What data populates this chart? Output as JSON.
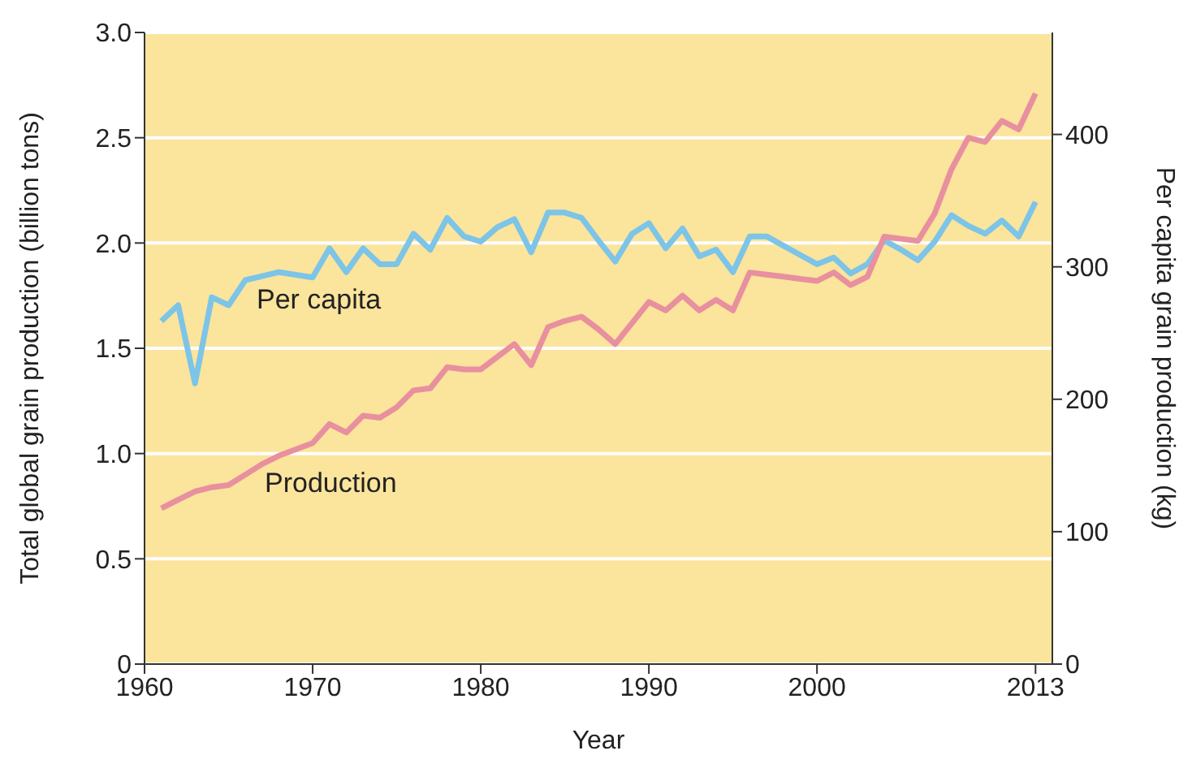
{
  "chart_data": {
    "type": "line",
    "xlabel": "Year",
    "ylabel": "Total global grain production (billion tons)",
    "y2label": "Per capita grain production (kg)",
    "x": [
      1961,
      1962,
      1963,
      1964,
      1965,
      1966,
      1967,
      1968,
      1969,
      1970,
      1971,
      1972,
      1973,
      1974,
      1975,
      1976,
      1977,
      1978,
      1979,
      1980,
      1981,
      1982,
      1983,
      1984,
      1985,
      1986,
      1987,
      1988,
      1989,
      1990,
      1991,
      1992,
      1993,
      1994,
      1995,
      1996,
      1997,
      1998,
      1999,
      2000,
      2001,
      2002,
      2003,
      2004,
      2005,
      2006,
      2007,
      2008,
      2009,
      2010,
      2011,
      2012,
      2013
    ],
    "series": [
      {
        "name": "Per capita",
        "color": "#7cc4e8",
        "axis": "y2",
        "values": [
          259,
          271,
          212,
          277,
          271,
          290,
          293,
          296,
          294,
          292,
          314,
          296,
          314,
          302,
          302,
          325,
          313,
          337,
          323,
          319,
          330,
          336,
          311,
          341,
          341,
          337,
          320,
          304,
          325,
          333,
          314,
          329,
          308,
          313,
          296,
          323,
          323,
          316,
          309,
          302,
          307,
          295,
          302,
          320,
          313,
          305,
          319,
          339,
          331,
          325,
          335,
          323,
          349
        ]
      },
      {
        "name": "Production",
        "color": "#e8909f",
        "values": [
          0.74,
          0.78,
          0.82,
          0.84,
          0.85,
          0.9,
          0.95,
          0.99,
          1.02,
          1.05,
          1.14,
          1.1,
          1.18,
          1.17,
          1.22,
          1.3,
          1.31,
          1.41,
          1.4,
          1.4,
          1.46,
          1.52,
          1.42,
          1.6,
          1.63,
          1.65,
          1.59,
          1.52,
          1.62,
          1.72,
          1.68,
          1.75,
          1.68,
          1.73,
          1.68,
          1.86,
          1.85,
          1.84,
          1.83,
          1.82,
          1.86,
          1.8,
          1.84,
          2.03,
          2.02,
          2.01,
          2.14,
          2.35,
          2.5,
          2.48,
          2.58,
          2.54,
          2.71
        ]
      }
    ],
    "xlim": [
      1960,
      2014
    ],
    "xticks": [
      1960,
      1970,
      1980,
      1990,
      2000,
      2013
    ],
    "ylim": [
      0,
      3
    ],
    "yticks": [
      0,
      {
        "value": 0.5,
        "label": "0.5"
      },
      {
        "value": 1,
        "label": "1.0"
      },
      {
        "value": 1.5,
        "label": "1.5"
      },
      {
        "value": 2,
        "label": "2.0"
      },
      {
        "value": 2.5,
        "label": "2.5"
      },
      {
        "value": 3,
        "label": "3.0"
      }
    ],
    "y2lim": [
      0,
      477
    ],
    "y2ticks": [
      0,
      100,
      200,
      300,
      400
    ],
    "grid": "y",
    "marker": "none",
    "line_style": "solid"
  }
}
